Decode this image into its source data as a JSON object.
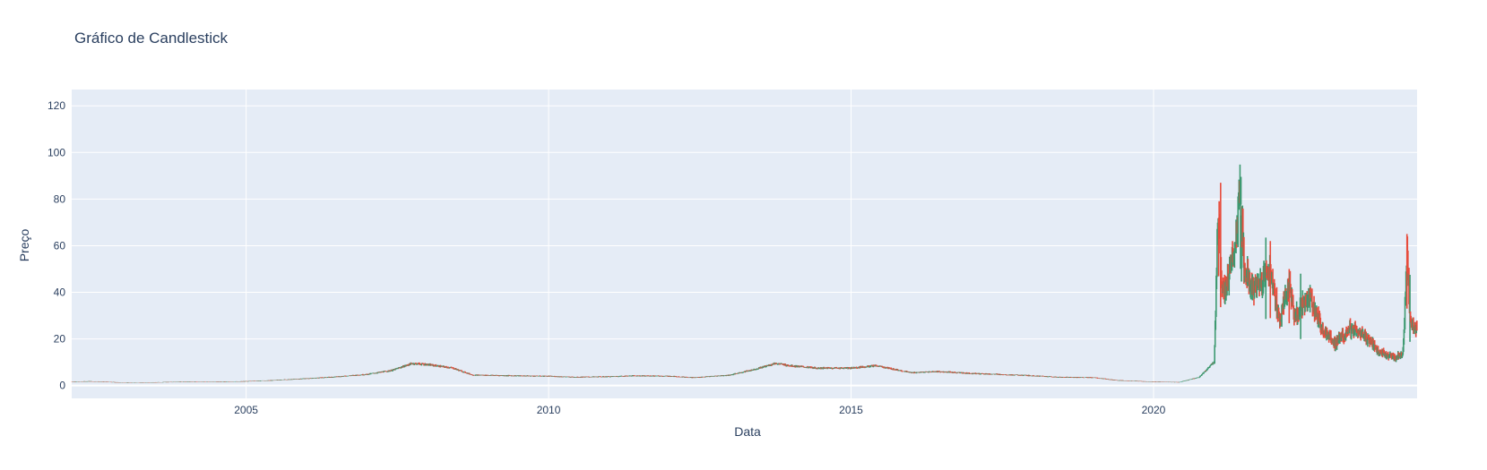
{
  "chart_data": {
    "type": "candlestick",
    "title": "Gráfico de Candlestick",
    "xlabel": "Data",
    "ylabel": "Preço",
    "x_range": [
      "2002-02-13",
      "2024-05-10"
    ],
    "y_range": [
      -5.5,
      127
    ],
    "x_ticks": [
      "2005",
      "2010",
      "2015",
      "2020"
    ],
    "y_ticks": [
      0,
      20,
      40,
      60,
      80,
      100,
      120
    ],
    "grid": true,
    "plot_background": "#e5ecf6",
    "increasing_color": "#3d9970",
    "decreasing_color": "#e74c3c",
    "series_close": [
      [
        "2002-02-13",
        1.6
      ],
      [
        "2002-06-01",
        1.8
      ],
      [
        "2002-09-01",
        1.6
      ],
      [
        "2003-01-01",
        1.2
      ],
      [
        "2003-06-01",
        1.3
      ],
      [
        "2004-01-01",
        1.6
      ],
      [
        "2004-06-01",
        1.5
      ],
      [
        "2005-01-01",
        1.8
      ],
      [
        "2005-06-01",
        2.2
      ],
      [
        "2006-01-01",
        3.0
      ],
      [
        "2006-06-01",
        3.6
      ],
      [
        "2007-01-01",
        4.8
      ],
      [
        "2007-06-01",
        6.5
      ],
      [
        "2007-10-01",
        9.5
      ],
      [
        "2008-01-01",
        9.0
      ],
      [
        "2008-06-01",
        7.5
      ],
      [
        "2008-10-01",
        4.5
      ],
      [
        "2009-06-01",
        4.2
      ],
      [
        "2010-01-01",
        4.0
      ],
      [
        "2010-06-01",
        3.6
      ],
      [
        "2011-01-01",
        3.8
      ],
      [
        "2011-06-01",
        4.2
      ],
      [
        "2012-01-01",
        4.0
      ],
      [
        "2012-06-01",
        3.4
      ],
      [
        "2013-01-01",
        4.5
      ],
      [
        "2013-06-01",
        7.0
      ],
      [
        "2013-10-01",
        9.5
      ],
      [
        "2014-01-01",
        8.5
      ],
      [
        "2014-06-01",
        7.5
      ],
      [
        "2015-01-01",
        7.5
      ],
      [
        "2015-06-01",
        8.5
      ],
      [
        "2016-01-01",
        5.5
      ],
      [
        "2016-06-01",
        6.0
      ],
      [
        "2017-01-01",
        5.2
      ],
      [
        "2017-06-01",
        4.8
      ],
      [
        "2018-01-01",
        4.2
      ],
      [
        "2018-06-01",
        3.6
      ],
      [
        "2019-01-01",
        3.4
      ],
      [
        "2019-06-01",
        2.2
      ],
      [
        "2020-01-01",
        1.6
      ],
      [
        "2020-06-01",
        1.4
      ],
      [
        "2020-10-01",
        3.5
      ],
      [
        "2021-01-01",
        10
      ],
      [
        "2021-01-27",
        80
      ],
      [
        "2021-02-15",
        45
      ],
      [
        "2021-03-10",
        40
      ],
      [
        "2021-05-01",
        55
      ],
      [
        "2021-06-08",
        85
      ],
      [
        "2021-07-01",
        50
      ],
      [
        "2021-09-01",
        40
      ],
      [
        "2021-12-01",
        50
      ],
      [
        "2022-02-01",
        28
      ],
      [
        "2022-03-29",
        45
      ],
      [
        "2022-05-01",
        30
      ],
      [
        "2022-08-01",
        38
      ],
      [
        "2022-10-01",
        26
      ],
      [
        "2023-01-01",
        18
      ],
      [
        "2023-04-01",
        24
      ],
      [
        "2023-07-01",
        21
      ],
      [
        "2023-10-01",
        14
      ],
      [
        "2024-01-01",
        12
      ],
      [
        "2024-02-15",
        14
      ],
      [
        "2024-03-10",
        55
      ],
      [
        "2024-04-01",
        26
      ],
      [
        "2024-05-10",
        24
      ]
    ]
  }
}
